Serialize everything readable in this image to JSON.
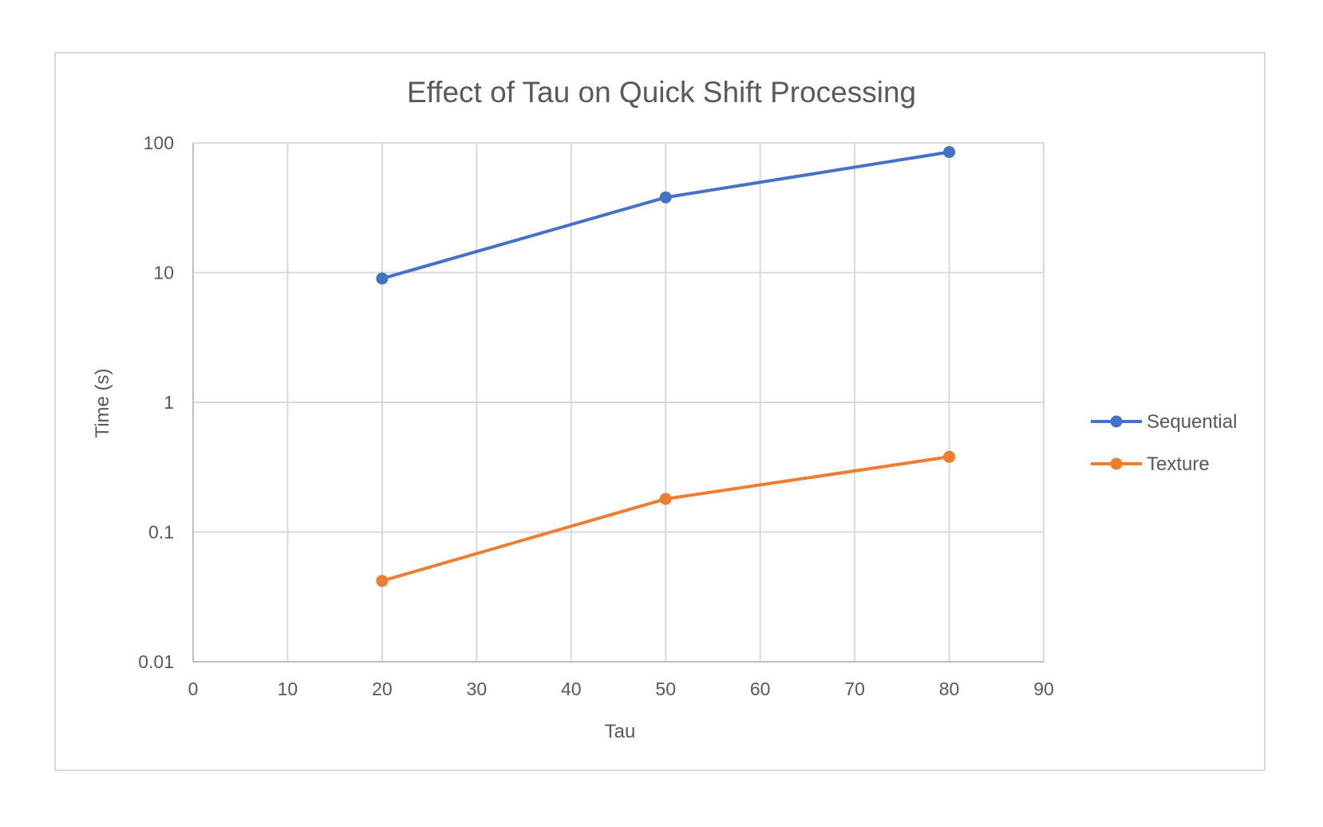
{
  "chart_data": {
    "type": "line",
    "title": "Effect of Tau on Quick Shift Processing",
    "xlabel": "Tau",
    "ylabel": "Time (s)",
    "xlim": [
      0,
      90
    ],
    "ylim": [
      0.01,
      100
    ],
    "yscale": "log",
    "xticks": [
      "0",
      "10",
      "20",
      "30",
      "40",
      "50",
      "60",
      "70",
      "80",
      "90"
    ],
    "yticks": [
      "0.01",
      "0.1",
      "1",
      "10",
      "100"
    ],
    "grid": true,
    "legend_position": "right",
    "x": [
      20,
      50,
      80
    ],
    "series": [
      {
        "name": "Sequential",
        "color": "#4472c4",
        "values": [
          9,
          38,
          85
        ]
      },
      {
        "name": "Texture",
        "color": "#ed7d31",
        "values": [
          0.042,
          0.18,
          0.38
        ]
      }
    ]
  }
}
